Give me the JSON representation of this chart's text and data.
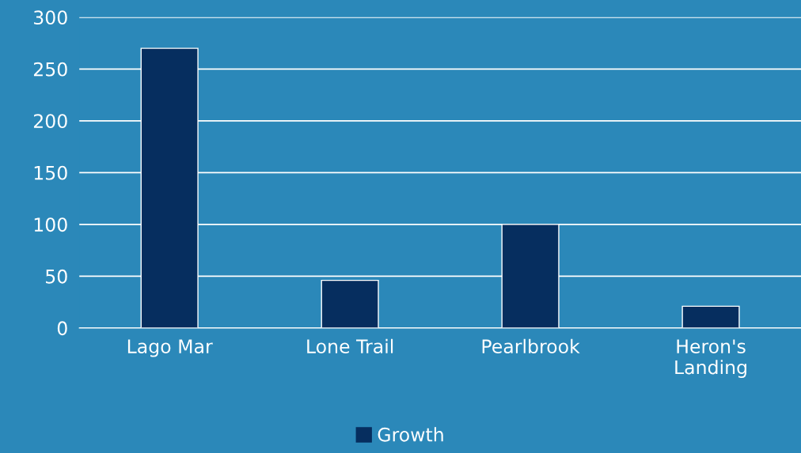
{
  "chart_data": {
    "type": "bar",
    "categories": [
      "Lago Mar",
      "Lone Trail",
      "Pearlbrook",
      "Heron's\nLanding"
    ],
    "series": [
      {
        "name": "Growth",
        "color": "#062e5f",
        "values": [
          270,
          46,
          100,
          21
        ]
      }
    ],
    "ylim": [
      0,
      300
    ],
    "yticks": [
      0,
      50,
      100,
      150,
      200,
      250,
      300
    ],
    "grid": "y",
    "legend": "bottom"
  }
}
